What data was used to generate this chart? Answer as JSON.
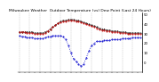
{
  "title": "Milwaukee Weather  Outdoor Temperature (vs) Dew Point (Last 24 Hours)",
  "title_fontsize": 3.2,
  "n_points": 48,
  "temp_values": [
    32,
    32,
    32,
    31,
    31,
    31,
    30,
    30,
    30,
    30,
    31,
    33,
    35,
    37,
    39,
    41,
    42,
    43,
    43,
    44,
    44,
    44,
    43,
    43,
    42,
    41,
    40,
    39,
    38,
    37,
    36,
    35,
    34,
    34,
    33,
    33,
    32,
    32,
    32,
    31,
    31,
    31,
    30,
    30,
    30,
    30,
    30,
    30
  ],
  "dew_values": [
    28,
    27,
    27,
    26,
    26,
    26,
    25,
    25,
    25,
    25,
    26,
    27,
    27,
    28,
    28,
    28,
    28,
    27,
    24,
    18,
    10,
    4,
    1,
    -2,
    -4,
    -2,
    5,
    12,
    18,
    20,
    22,
    22,
    22,
    23,
    23,
    23,
    24,
    24,
    24,
    24,
    25,
    25,
    25,
    25,
    26,
    26,
    26,
    26
  ],
  "hi_temp_values": [
    32,
    32,
    32,
    32,
    32,
    32,
    31,
    31,
    31,
    31,
    32,
    33,
    35,
    37,
    39,
    41,
    43,
    44,
    44,
    45,
    45,
    45,
    44,
    44,
    43,
    42,
    41,
    40,
    39,
    38,
    37,
    36,
    35,
    35,
    34,
    34,
    33,
    33,
    33,
    32,
    32,
    32,
    31,
    31,
    31,
    31,
    31,
    31
  ],
  "temp_color": "#cc0000",
  "dew_color": "#0000cc",
  "hi_color": "#000000",
  "ylim": [
    -10,
    52
  ],
  "yticks": [
    0,
    10,
    20,
    30,
    40,
    50
  ],
  "grid_color": "#aaaaaa",
  "bg_color": "#ffffff",
  "linewidth": 0.6,
  "markersize": 0.9,
  "n_gridlines": 12
}
